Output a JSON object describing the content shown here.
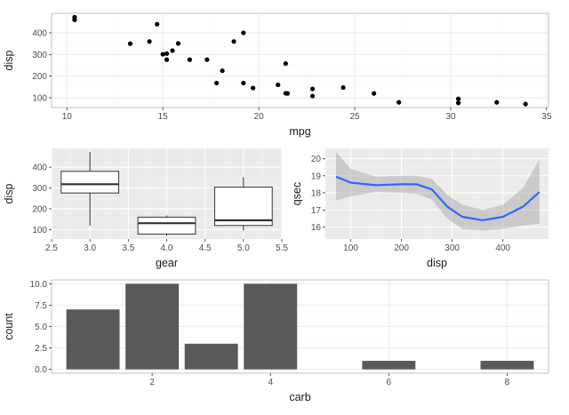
{
  "chart_data": [
    {
      "id": "scatter",
      "type": "scatter",
      "xlabel": "mpg",
      "ylabel": "disp",
      "xlim": [
        9.2,
        35.1
      ],
      "ylim": [
        55,
        490
      ],
      "xticks": [
        10,
        15,
        20,
        25,
        30,
        35
      ],
      "yticks": [
        100,
        200,
        300,
        400
      ],
      "grid": true,
      "theme": "light",
      "points": [
        [
          10.4,
          472
        ],
        [
          10.4,
          460
        ],
        [
          13.3,
          350
        ],
        [
          14.3,
          360
        ],
        [
          14.7,
          440
        ],
        [
          15.0,
          301
        ],
        [
          15.2,
          304
        ],
        [
          15.2,
          276
        ],
        [
          15.5,
          318
        ],
        [
          15.8,
          351
        ],
        [
          16.4,
          276
        ],
        [
          17.3,
          276
        ],
        [
          17.8,
          168
        ],
        [
          18.1,
          225
        ],
        [
          18.7,
          360
        ],
        [
          19.2,
          400
        ],
        [
          19.2,
          168
        ],
        [
          19.7,
          145
        ],
        [
          21.0,
          160
        ],
        [
          21.0,
          160
        ],
        [
          21.4,
          258
        ],
        [
          21.4,
          121
        ],
        [
          21.5,
          120
        ],
        [
          22.8,
          141
        ],
        [
          22.8,
          108
        ],
        [
          24.4,
          147
        ],
        [
          26.0,
          120
        ],
        [
          27.3,
          79
        ],
        [
          30.4,
          95
        ],
        [
          30.4,
          76
        ],
        [
          32.4,
          79
        ],
        [
          33.9,
          71
        ]
      ]
    },
    {
      "id": "boxplot",
      "type": "boxplot",
      "xlabel": "gear",
      "ylabel": "disp",
      "xlim": [
        2.5,
        5.5
      ],
      "ylim": [
        55,
        490
      ],
      "xticks": [
        "2.5",
        "3.0",
        "3.5",
        "4.0",
        "4.5",
        "5.0",
        "5.5"
      ],
      "yticks": [
        100,
        200,
        300,
        400
      ],
      "grid": true,
      "theme": "grey",
      "boxes": [
        {
          "x": 3,
          "min": 120,
          "q1": 276,
          "median": 318,
          "q3": 380,
          "max": 472
        },
        {
          "x": 4,
          "min": 71,
          "q1": 79,
          "median": 131,
          "q3": 160,
          "max": 168
        },
        {
          "x": 5,
          "min": 95,
          "q1": 120,
          "median": 145,
          "q3": 304,
          "max": 351
        }
      ]
    },
    {
      "id": "smooth",
      "type": "line",
      "xlabel": "disp",
      "ylabel": "qsec",
      "xlim": [
        50,
        490
      ],
      "ylim": [
        15.3,
        20.6
      ],
      "xticks": [
        100,
        200,
        300,
        400
      ],
      "yticks": [
        16,
        17,
        18,
        19,
        20
      ],
      "grid": true,
      "theme": "grey",
      "series": [
        {
          "name": "loess fit",
          "color": "#3366ff",
          "x": [
            71,
            100,
            150,
            200,
            230,
            260,
            290,
            320,
            360,
            400,
            440,
            472
          ],
          "y": [
            18.95,
            18.6,
            18.45,
            18.5,
            18.5,
            18.2,
            17.2,
            16.6,
            16.4,
            16.6,
            17.2,
            18.05
          ]
        }
      ],
      "ribbon": {
        "color": "#999999",
        "x": [
          71,
          100,
          150,
          200,
          230,
          260,
          290,
          320,
          360,
          400,
          440,
          472
        ],
        "lower": [
          17.55,
          17.8,
          18.05,
          18.0,
          17.95,
          17.6,
          16.5,
          15.9,
          15.8,
          15.9,
          16.1,
          16.2
        ],
        "upper": [
          20.4,
          19.4,
          18.95,
          19.0,
          19.0,
          18.8,
          17.9,
          17.3,
          17.0,
          17.3,
          18.3,
          19.95
        ]
      }
    },
    {
      "id": "bar",
      "type": "bar",
      "xlabel": "carb",
      "ylabel": "count",
      "xlim": [
        0.3,
        8.7
      ],
      "ylim": [
        -0.45,
        10.45
      ],
      "xticks": [
        2,
        4,
        6,
        8
      ],
      "yticks": [
        "0.0",
        "2.5",
        "5.0",
        "7.5",
        "10.0"
      ],
      "grid": true,
      "theme": "light",
      "bar_color": "#595959",
      "categories": [
        1,
        2,
        3,
        4,
        6,
        8
      ],
      "values": [
        7,
        10,
        3,
        10,
        1,
        1
      ]
    }
  ]
}
